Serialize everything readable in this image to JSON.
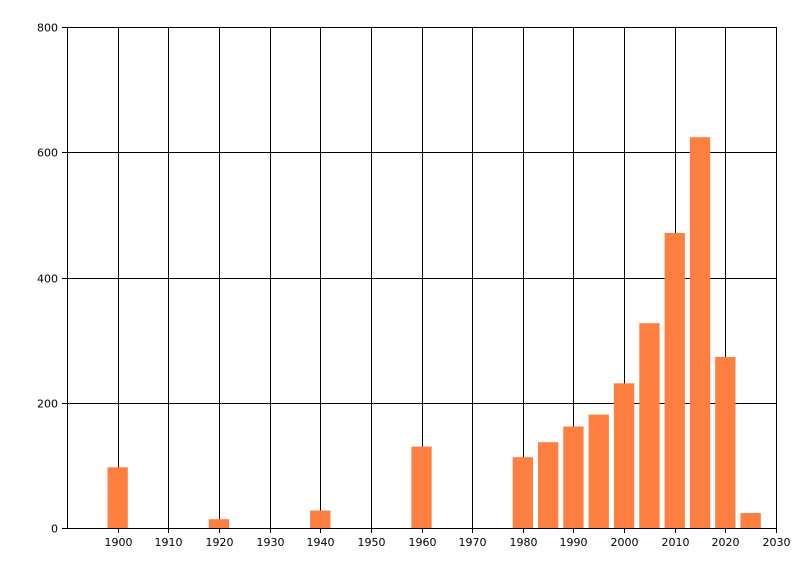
{
  "chart_data": {
    "type": "bar",
    "title": "",
    "xlabel": "",
    "ylabel": "",
    "xlim": [
      1890,
      2030
    ],
    "ylim": [
      0,
      800
    ],
    "x_ticks": [
      1900,
      1910,
      1920,
      1930,
      1940,
      1950,
      1960,
      1970,
      1980,
      1990,
      2000,
      2010,
      2020,
      2030
    ],
    "y_ticks": [
      0,
      200,
      400,
      600,
      800
    ],
    "grid": true,
    "bar_width": 4,
    "series": [
      {
        "color": "#ff7f40",
        "x": [
          1900,
          1920,
          1940,
          1960,
          1980,
          1985,
          1990,
          1995,
          2000,
          2005,
          2010,
          2015,
          2020,
          2025
        ],
        "values": [
          97,
          14,
          28,
          130,
          113,
          137,
          162,
          181,
          231,
          327,
          471,
          624,
          273,
          24
        ]
      }
    ]
  }
}
